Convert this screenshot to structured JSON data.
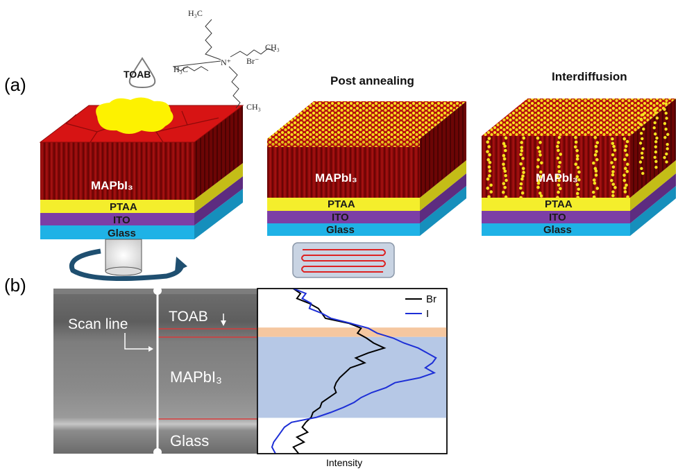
{
  "panel_labels": {
    "a": "(a)",
    "b": "(b)"
  },
  "chemical": {
    "droplet_label": "TOAB",
    "groups": {
      "h3c_top": "H₃C",
      "h3c_left": "H₃C",
      "ch3_right": "CH₃",
      "ch3_bottom": "CH₃",
      "n_plus": "N⁺",
      "br_minus": "Br⁻"
    }
  },
  "stacks": [
    {
      "title": "",
      "perovskite": "MAPbI₃",
      "ptaa": "PTAA",
      "ito": "ITO",
      "glass": "Glass"
    },
    {
      "title": "Post annealing",
      "perovskite": "MAPbI₃",
      "ptaa": "PTAA",
      "ito": "ITO",
      "glass": "Glass"
    },
    {
      "title": "Interdiffusion",
      "perovskite": "MAPbI₃",
      "ptaa": "PTAA",
      "ito": "ITO",
      "glass": "Glass"
    }
  ],
  "sem": {
    "scan_line_label": "Scan line",
    "toab_label": "TOAB",
    "mapbi_label": "MAPbI₃",
    "glass_label": "Glass"
  },
  "chart_data": {
    "type": "line",
    "xlabel": "Intensity",
    "ylabel": "",
    "legend_position": "top-right",
    "x_ticks": false,
    "y_ticks": false,
    "bands": [
      {
        "name": "TOAB",
        "from": 0.236,
        "to": 0.293,
        "color": "#f5c7a0"
      },
      {
        "name": "MAPbI3",
        "from": 0.293,
        "to": 0.783,
        "color": "#b6c8e6"
      }
    ],
    "series": [
      {
        "name": "Br",
        "color": "#000000",
        "depth": [
          0.0,
          0.03,
          0.06,
          0.09,
          0.12,
          0.15,
          0.18,
          0.21,
          0.24,
          0.27,
          0.3,
          0.33,
          0.36,
          0.39,
          0.42,
          0.45,
          0.48,
          0.51,
          0.54,
          0.57,
          0.6,
          0.63,
          0.66,
          0.69,
          0.72,
          0.75,
          0.78,
          0.81,
          0.84,
          0.87,
          0.9,
          0.93,
          0.96,
          1.0
        ],
        "intensity": [
          0.17,
          0.21,
          0.19,
          0.26,
          0.31,
          0.33,
          0.35,
          0.48,
          0.55,
          0.53,
          0.58,
          0.62,
          0.68,
          0.59,
          0.52,
          0.57,
          0.49,
          0.46,
          0.43,
          0.41,
          0.4,
          0.41,
          0.37,
          0.33,
          0.32,
          0.28,
          0.27,
          0.24,
          0.22,
          0.25,
          0.19,
          0.23,
          0.17,
          0.2
        ]
      },
      {
        "name": "I",
        "color": "#1d2fd6",
        "depth": [
          0.0,
          0.03,
          0.06,
          0.09,
          0.12,
          0.15,
          0.18,
          0.21,
          0.24,
          0.27,
          0.3,
          0.33,
          0.36,
          0.39,
          0.42,
          0.45,
          0.48,
          0.51,
          0.54,
          0.57,
          0.6,
          0.63,
          0.66,
          0.69,
          0.72,
          0.75,
          0.78,
          0.81,
          0.84,
          0.87,
          0.9,
          0.93,
          0.96,
          1.0
        ],
        "intensity": [
          0.17,
          0.24,
          0.22,
          0.27,
          0.26,
          0.33,
          0.38,
          0.49,
          0.59,
          0.64,
          0.73,
          0.79,
          0.87,
          0.92,
          0.97,
          0.95,
          0.91,
          0.96,
          0.88,
          0.74,
          0.69,
          0.61,
          0.55,
          0.51,
          0.45,
          0.38,
          0.3,
          0.16,
          0.12,
          0.1,
          0.08,
          0.06,
          0.05,
          0.07
        ]
      }
    ]
  }
}
